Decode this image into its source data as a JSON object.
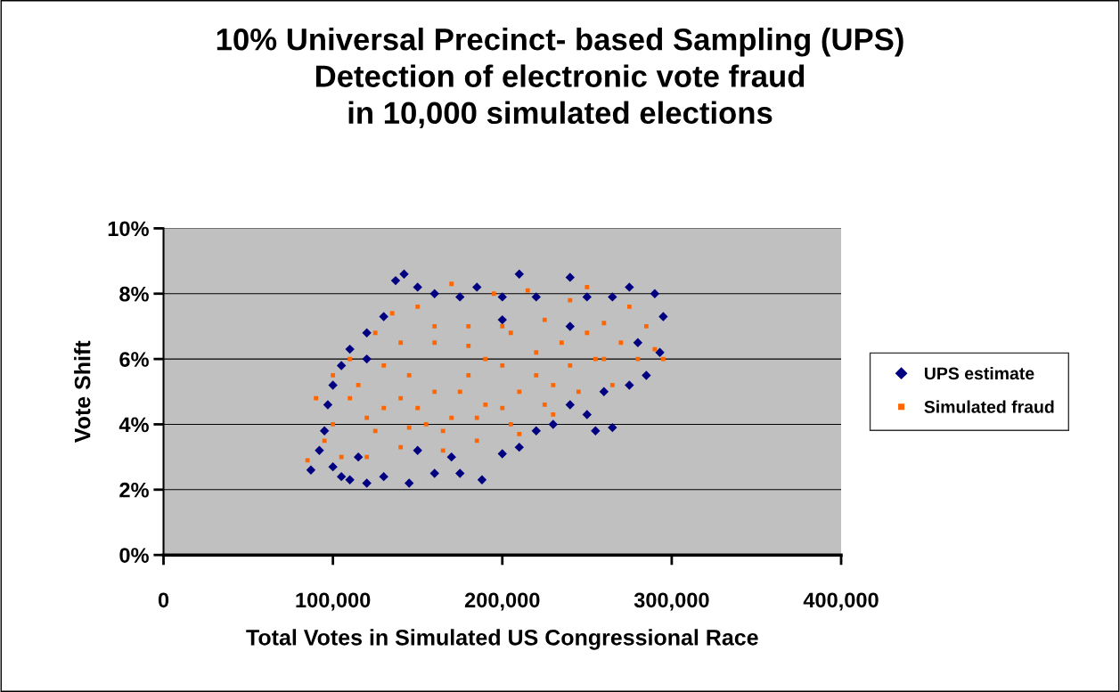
{
  "chart_data": {
    "type": "scatter",
    "title": "10% Universal Precinct- based Sampling (UPS)\nDetection of electronic vote fraud\nin 10,000 simulated elections",
    "xlabel": "Total Votes in Simulated US Congressional Race",
    "ylabel": "Vote Shift",
    "xlim": [
      0,
      400000
    ],
    "xticks": [
      0,
      {
        "value": 100000,
        "label": "100,000"
      },
      {
        "value": 200000,
        "label": "200,000"
      },
      {
        "value": 300000,
        "label": "300,000"
      },
      {
        "value": 400000,
        "label": "400,000"
      }
    ],
    "ylim": [
      0,
      10
    ],
    "yticks": [
      {
        "value": 0,
        "label": "0%"
      },
      {
        "value": 2,
        "label": "2%"
      },
      {
        "value": 4,
        "label": "4%"
      },
      {
        "value": 6,
        "label": "6%"
      },
      {
        "value": 8,
        "label": "8%"
      },
      {
        "value": 10,
        "label": "10%"
      }
    ],
    "grid": "y",
    "legend": "right",
    "series": [
      {
        "name": "UPS estimate",
        "color": "#000080",
        "marker": "diamond",
        "x": [
          87000,
          95000,
          97000,
          100000,
          105000,
          110000,
          120000,
          130000,
          137000,
          142000,
          150000,
          160000,
          175000,
          185000,
          200000,
          210000,
          220000,
          240000,
          250000,
          265000,
          275000,
          290000,
          295000,
          293000,
          285000,
          275000,
          265000,
          255000,
          250000,
          240000,
          230000,
          220000,
          210000,
          200000,
          188000,
          175000,
          160000,
          145000,
          130000,
          120000,
          110000,
          105000,
          100000,
          92000,
          115000,
          170000,
          260000,
          280000,
          150000,
          200000,
          120000,
          240000
        ],
        "values": [
          2.6,
          3.8,
          4.6,
          5.2,
          5.8,
          6.3,
          6.8,
          7.3,
          8.4,
          8.6,
          8.2,
          8.0,
          7.9,
          8.2,
          7.9,
          8.6,
          7.9,
          8.5,
          7.9,
          7.9,
          8.2,
          8.0,
          7.3,
          6.2,
          5.5,
          5.2,
          3.9,
          3.8,
          4.3,
          4.6,
          4.0,
          3.8,
          3.3,
          3.1,
          2.3,
          2.5,
          2.5,
          2.2,
          2.4,
          2.2,
          2.3,
          2.4,
          2.7,
          3.2,
          3.0,
          3.0,
          5.0,
          6.5,
          3.2,
          7.2,
          6.0,
          7.0
        ]
      },
      {
        "name": "Simulated fraud",
        "color": "#ff6600",
        "marker": "square",
        "x": [
          85000,
          90000,
          95000,
          100000,
          105000,
          110000,
          120000,
          125000,
          130000,
          135000,
          140000,
          145000,
          150000,
          155000,
          160000,
          165000,
          170000,
          175000,
          180000,
          185000,
          190000,
          195000,
          200000,
          205000,
          210000,
          215000,
          220000,
          225000,
          230000,
          235000,
          240000,
          245000,
          250000,
          255000,
          260000,
          265000,
          270000,
          275000,
          280000,
          285000,
          290000,
          295000,
          140000,
          160000,
          180000,
          200000,
          120000,
          100000,
          250000,
          130000,
          110000,
          150000,
          170000,
          190000,
          210000,
          230000,
          220000,
          240000,
          260000,
          180000,
          160000,
          140000,
          200000,
          115000,
          125000,
          145000,
          165000,
          185000,
          205000,
          225000
        ],
        "values": [
          2.9,
          4.8,
          3.5,
          5.5,
          3.0,
          6.0,
          3.0,
          6.8,
          4.5,
          7.4,
          3.3,
          5.5,
          7.6,
          4.0,
          6.5,
          3.2,
          8.3,
          5.0,
          7.0,
          3.5,
          6.0,
          8.0,
          4.5,
          6.8,
          3.7,
          8.1,
          5.5,
          7.2,
          4.3,
          6.5,
          7.8,
          5.0,
          8.2,
          6.0,
          7.1,
          5.2,
          6.5,
          7.6,
          6.0,
          7.0,
          6.3,
          6.0,
          4.8,
          5.0,
          5.5,
          5.8,
          4.2,
          4.0,
          6.8,
          5.8,
          4.8,
          4.5,
          4.2,
          4.6,
          5.0,
          5.2,
          6.2,
          5.8,
          6.0,
          6.4,
          7.0,
          6.5,
          7.0,
          5.2,
          3.8,
          3.9,
          3.8,
          4.2,
          4.0,
          4.6
        ]
      }
    ]
  }
}
